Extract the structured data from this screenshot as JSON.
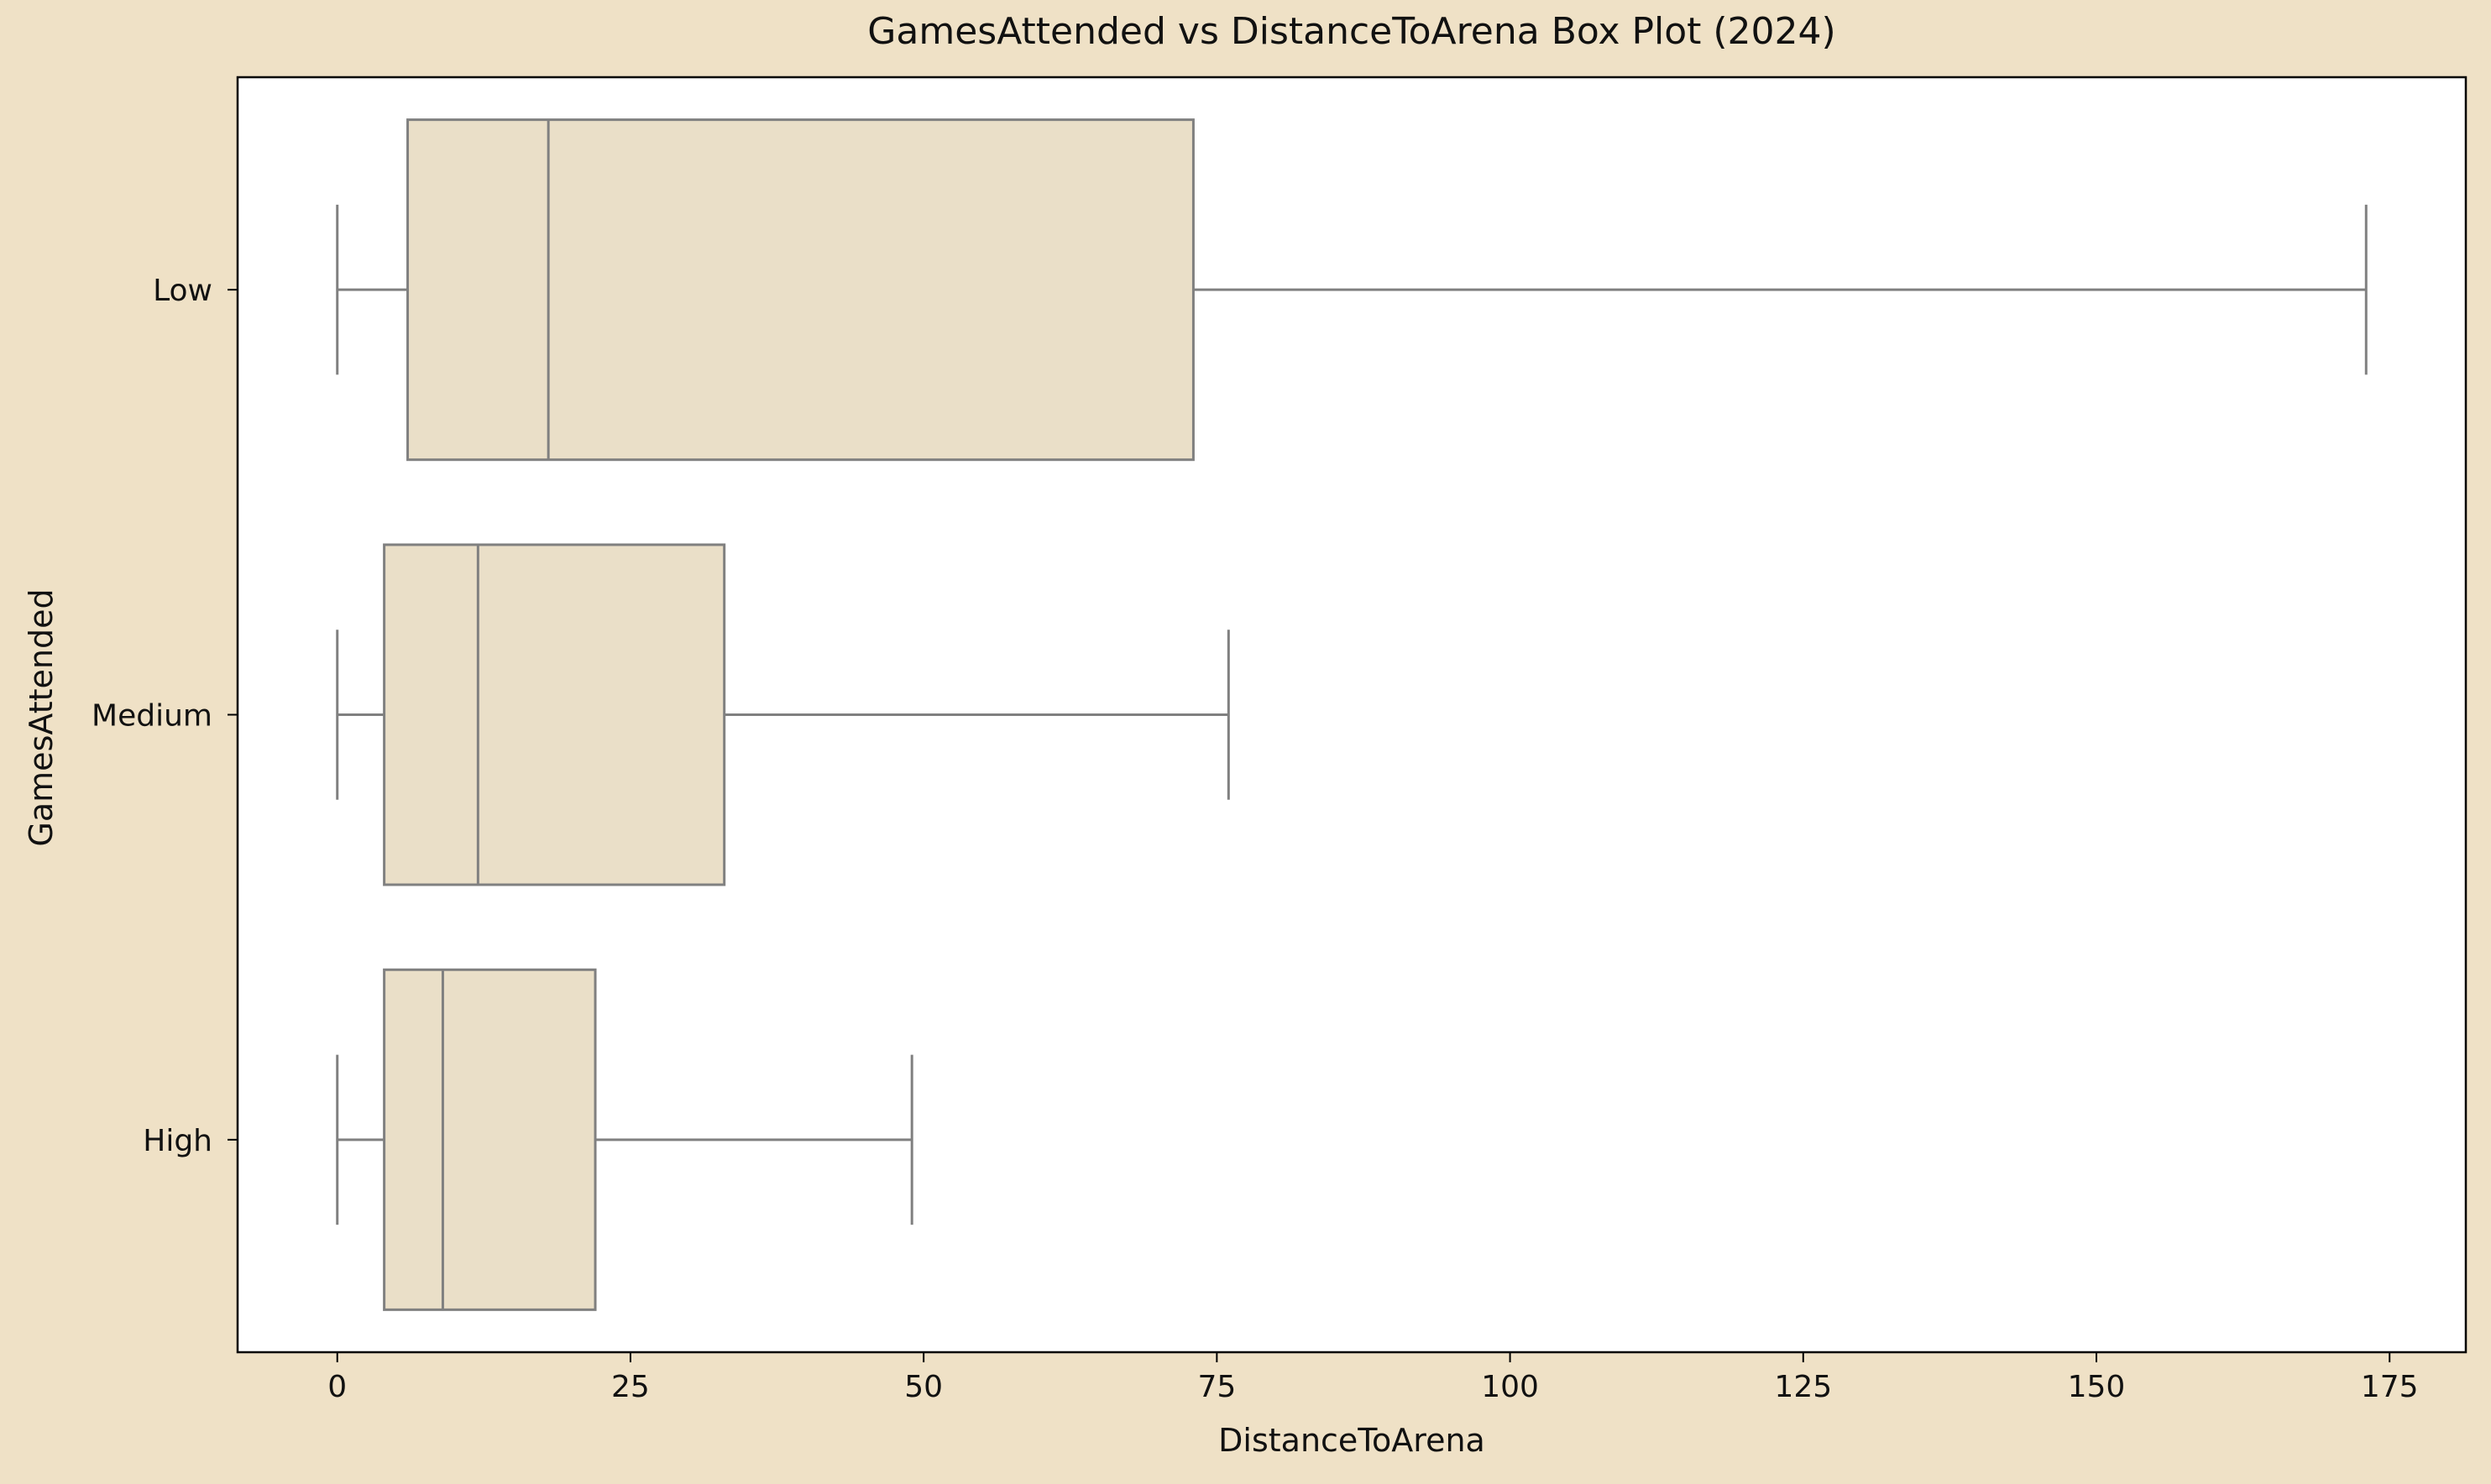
{
  "chart_data": {
    "type": "box",
    "orientation": "horizontal",
    "title": "GamesAttended vs DistanceToArena Box Plot (2024)",
    "xlabel": "DistanceToArena",
    "ylabel": "GamesAttended",
    "xlim": [
      -8.5,
      181.5
    ],
    "xticks": [
      0,
      25,
      50,
      75,
      100,
      125,
      150,
      175
    ],
    "categories": [
      "Low",
      "Medium",
      "High"
    ],
    "boxes": [
      {
        "category": "Low",
        "whisker_low": 0,
        "q1": 6,
        "median": 18,
        "q3": 73,
        "whisker_high": 173
      },
      {
        "category": "Medium",
        "whisker_low": 0,
        "q1": 4,
        "median": 12,
        "q3": 33,
        "whisker_high": 76
      },
      {
        "category": "High",
        "whisker_low": 0,
        "q1": 4,
        "median": 9,
        "q3": 22,
        "whisker_high": 49
      }
    ],
    "grid": false,
    "legend": "none"
  },
  "colors": {
    "figure_background": "#efe1c6",
    "plot_background": "#ffffff",
    "box_fill": "#eadfc8",
    "box_stroke": "#808080",
    "axis": "#000000"
  }
}
